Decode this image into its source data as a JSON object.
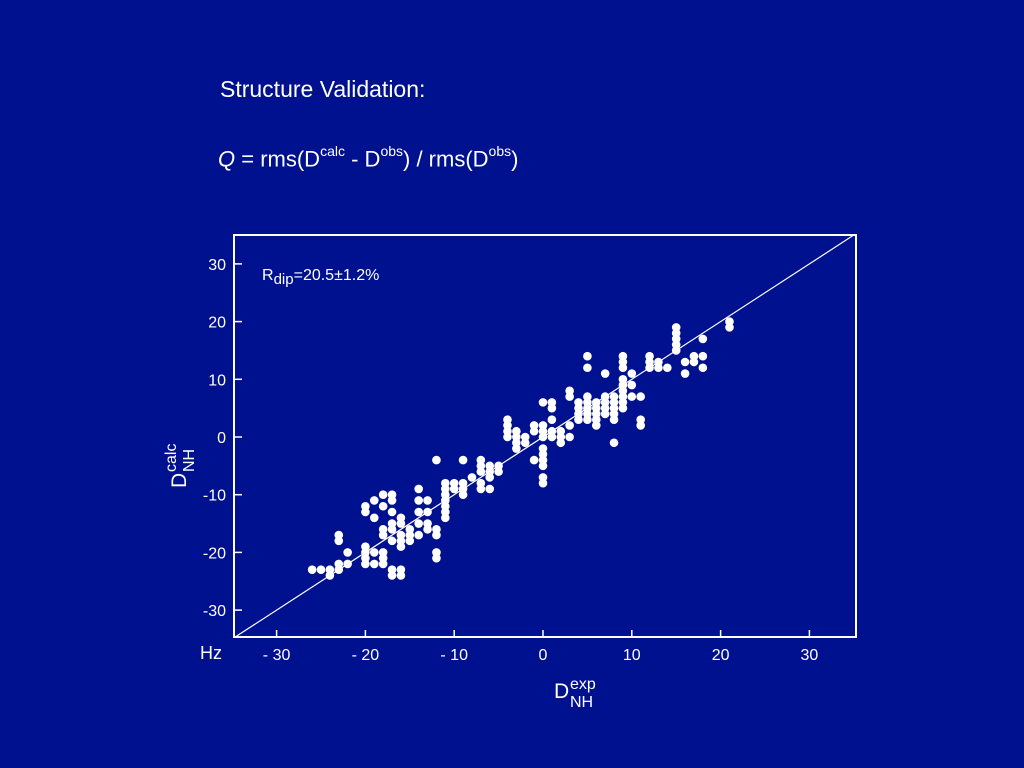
{
  "slide": {
    "title": "Structure Validation:",
    "formula": {
      "q": "Q",
      "eq": " = rms(D",
      "sup1": "calc",
      "mid": " - D",
      "sup2": "obs",
      "mid2": ") / rms(D",
      "sup3": "obs",
      "end": ")"
    }
  },
  "chart_data": {
    "type": "scatter",
    "title": "",
    "xlabel": {
      "base": "D",
      "sup": "exp",
      "sub": "NH"
    },
    "ylabel": {
      "base": "D",
      "sup": "calc",
      "sub": "NH"
    },
    "unit_label": "Hz",
    "annotation": {
      "base": "R",
      "sub": "dip",
      "rest": "=20.5±1.2%"
    },
    "xlim": [
      -35,
      35
    ],
    "ylim": [
      -35,
      35
    ],
    "xticks": [
      -30,
      -20,
      -10,
      0,
      10,
      20,
      30
    ],
    "xtick_labels": [
      "- 30",
      "- 20",
      "- 10",
      "0",
      "10",
      "20",
      "30"
    ],
    "yticks": [
      30,
      20,
      10,
      0,
      -10,
      -20,
      -30
    ],
    "ytick_labels": [
      "30",
      "20",
      "10",
      "0",
      "-10",
      "-20",
      "-30"
    ],
    "grid": false,
    "reference_line": {
      "from": [
        -35,
        -35
      ],
      "to": [
        35,
        35
      ]
    },
    "colors": {
      "background": "#00118f",
      "marks": "#ffffff"
    },
    "points": [
      [
        -26,
        -23
      ],
      [
        -25,
        -23
      ],
      [
        -24,
        -23
      ],
      [
        -24,
        -24
      ],
      [
        -23,
        -23
      ],
      [
        -23,
        -22
      ],
      [
        -22,
        -20
      ],
      [
        -22,
        -22
      ],
      [
        -23,
        -17
      ],
      [
        -23,
        -18
      ],
      [
        -20,
        -19
      ],
      [
        -20,
        -20
      ],
      [
        -20,
        -21
      ],
      [
        -20,
        -22
      ],
      [
        -19,
        -20
      ],
      [
        -19,
        -22
      ],
      [
        -18,
        -20
      ],
      [
        -18,
        -21
      ],
      [
        -18,
        -22
      ],
      [
        -17,
        -23
      ],
      [
        -17,
        -24
      ],
      [
        -16,
        -23
      ],
      [
        -16,
        -24
      ],
      [
        -20,
        -12
      ],
      [
        -20,
        -13
      ],
      [
        -19,
        -14
      ],
      [
        -19,
        -11
      ],
      [
        -18,
        -10
      ],
      [
        -18,
        -12
      ],
      [
        -18,
        -16
      ],
      [
        -18,
        -17
      ],
      [
        -17,
        -10
      ],
      [
        -17,
        -11
      ],
      [
        -17,
        -13
      ],
      [
        -17,
        -15
      ],
      [
        -17,
        -16
      ],
      [
        -17,
        -18
      ],
      [
        -16,
        -14
      ],
      [
        -16,
        -15
      ],
      [
        -16,
        -17
      ],
      [
        -16,
        -18
      ],
      [
        -16,
        -19
      ],
      [
        -15,
        -16
      ],
      [
        -15,
        -17
      ],
      [
        -15,
        -18
      ],
      [
        -14,
        -9
      ],
      [
        -14,
        -11
      ],
      [
        -14,
        -13
      ],
      [
        -14,
        -15
      ],
      [
        -14,
        -17
      ],
      [
        -13,
        -11
      ],
      [
        -13,
        -13
      ],
      [
        -13,
        -15
      ],
      [
        -13,
        -16
      ],
      [
        -12,
        -20
      ],
      [
        -12,
        -21
      ],
      [
        -12,
        -16
      ],
      [
        -12,
        -17
      ],
      [
        -11,
        -12
      ],
      [
        -11,
        -13
      ],
      [
        -11,
        -14
      ],
      [
        -12,
        -4
      ],
      [
        -11,
        -8
      ],
      [
        -11,
        -9
      ],
      [
        -11,
        -10
      ],
      [
        -11,
        -11
      ],
      [
        -10,
        -8
      ],
      [
        -10,
        -9
      ],
      [
        -9,
        -8
      ],
      [
        -9,
        -9
      ],
      [
        -9,
        -10
      ],
      [
        -9,
        -4
      ],
      [
        -8,
        -7
      ],
      [
        -7,
        -4
      ],
      [
        -7,
        -5
      ],
      [
        -7,
        -6
      ],
      [
        -7,
        -8
      ],
      [
        -7,
        -9
      ],
      [
        -6,
        -5
      ],
      [
        -6,
        -6
      ],
      [
        -6,
        -7
      ],
      [
        -6,
        -9
      ],
      [
        -5,
        -5
      ],
      [
        -5,
        -6
      ],
      [
        -4,
        0
      ],
      [
        -4,
        1
      ],
      [
        -4,
        2
      ],
      [
        -4,
        3
      ],
      [
        -3,
        -1
      ],
      [
        -3,
        -2
      ],
      [
        -3,
        0
      ],
      [
        -3,
        1
      ],
      [
        -2,
        -1
      ],
      [
        -2,
        0
      ],
      [
        -1,
        1
      ],
      [
        -1,
        2
      ],
      [
        -1,
        -4
      ],
      [
        0,
        0
      ],
      [
        0,
        1
      ],
      [
        0,
        2
      ],
      [
        0,
        -2
      ],
      [
        0,
        -3
      ],
      [
        0,
        -4
      ],
      [
        0,
        -5
      ],
      [
        0,
        -7
      ],
      [
        0,
        -8
      ],
      [
        1,
        0
      ],
      [
        1,
        1
      ],
      [
        1,
        3
      ],
      [
        1,
        5
      ],
      [
        1,
        6
      ],
      [
        0,
        6
      ],
      [
        2,
        -1
      ],
      [
        2,
        0
      ],
      [
        2,
        1
      ],
      [
        3,
        0
      ],
      [
        3,
        2
      ],
      [
        3,
        7
      ],
      [
        3,
        8
      ],
      [
        4,
        3
      ],
      [
        4,
        4
      ],
      [
        4,
        5
      ],
      [
        4,
        6
      ],
      [
        5,
        3
      ],
      [
        5,
        4
      ],
      [
        5,
        5
      ],
      [
        5,
        6
      ],
      [
        5,
        7
      ],
      [
        5,
        12
      ],
      [
        5,
        14
      ],
      [
        6,
        3
      ],
      [
        6,
        4
      ],
      [
        6,
        5
      ],
      [
        6,
        6
      ],
      [
        6,
        2
      ],
      [
        7,
        4
      ],
      [
        7,
        5
      ],
      [
        7,
        6
      ],
      [
        7,
        7
      ],
      [
        7,
        11
      ],
      [
        8,
        4
      ],
      [
        8,
        5
      ],
      [
        8,
        6
      ],
      [
        8,
        7
      ],
      [
        8,
        3
      ],
      [
        8,
        -1
      ],
      [
        9,
        5
      ],
      [
        9,
        6
      ],
      [
        9,
        7
      ],
      [
        9,
        8
      ],
      [
        9,
        9
      ],
      [
        9,
        10
      ],
      [
        9,
        12
      ],
      [
        9,
        13
      ],
      [
        9,
        14
      ],
      [
        10,
        7
      ],
      [
        10,
        9
      ],
      [
        10,
        11
      ],
      [
        11,
        2
      ],
      [
        11,
        3
      ],
      [
        11,
        7
      ],
      [
        12,
        12
      ],
      [
        12,
        13
      ],
      [
        12,
        14
      ],
      [
        13,
        12
      ],
      [
        13,
        13
      ],
      [
        14,
        12
      ],
      [
        15,
        15
      ],
      [
        15,
        16
      ],
      [
        15,
        17
      ],
      [
        15,
        18
      ],
      [
        15,
        19
      ],
      [
        16,
        13
      ],
      [
        16,
        11
      ],
      [
        17,
        13
      ],
      [
        17,
        14
      ],
      [
        18,
        12
      ],
      [
        18,
        14
      ],
      [
        18,
        17
      ],
      [
        21,
        20
      ],
      [
        21,
        19
      ]
    ]
  }
}
